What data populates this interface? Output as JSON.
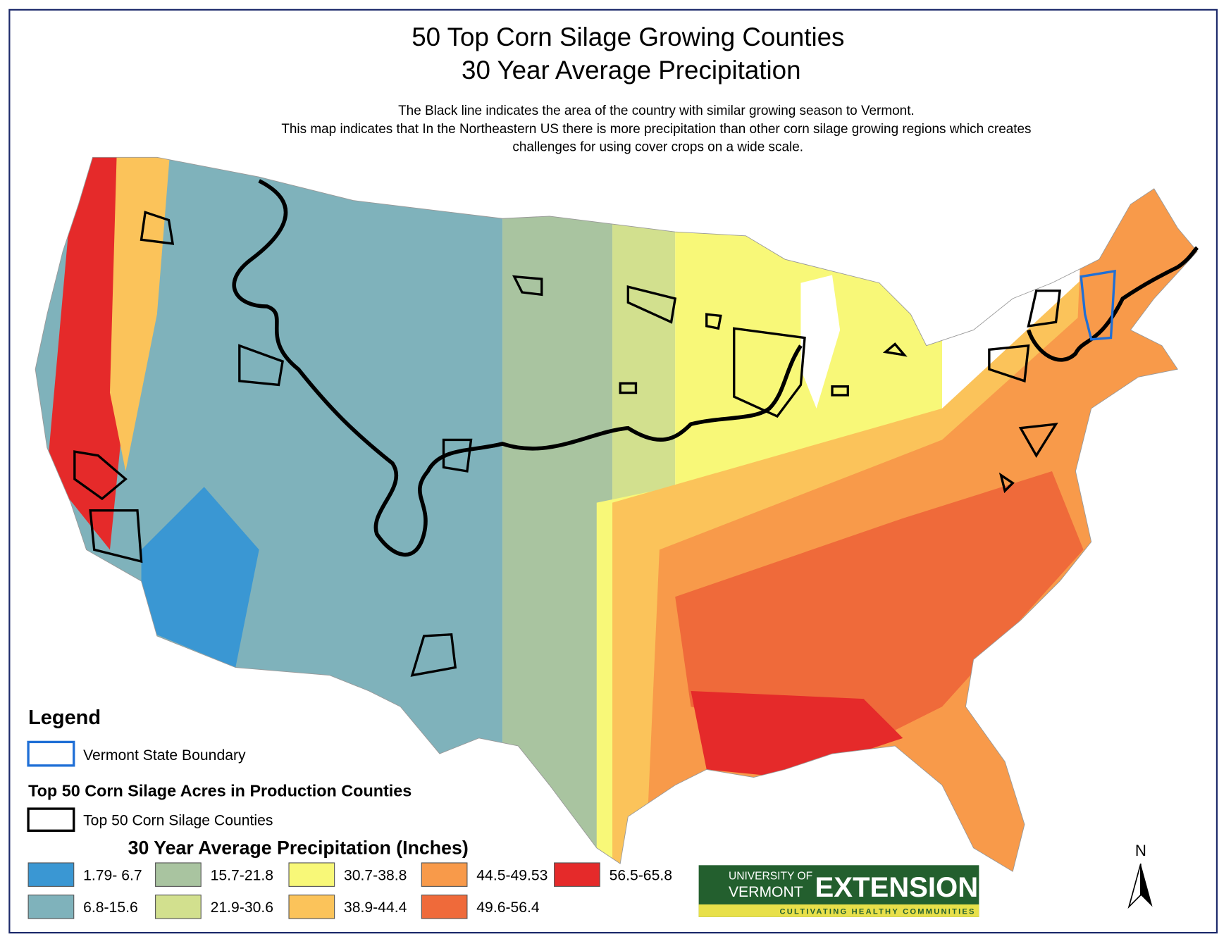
{
  "title": [
    "50 Top Corn Silage Growing Counties",
    "30 Year Average Precipitation"
  ],
  "description": [
    "The Black line indicates the area of the country with similar growing season to Vermont.",
    "This map indicates that In the Northeastern US there is more precipitation than other corn silage growing regions which creates",
    "challenges for using cover crops on a wide scale."
  ],
  "legend": {
    "title": "Legend",
    "vermont": {
      "label": "Vermont State Boundary",
      "color": "#1f6fd6"
    },
    "counties_heading": "Top 50 Corn Silage Acres in Production Counties",
    "counties": {
      "label": "Top 50 Corn Silage Counties",
      "color": "#000000"
    },
    "precip_heading": "30 Year Average Precipitation (Inches)",
    "classes": [
      {
        "label": "1.79- 6.7",
        "color": "#3a97d3"
      },
      {
        "label": "6.8-15.6",
        "color": "#7fb2bb"
      },
      {
        "label": "15.7-21.8",
        "color": "#a9c4a0"
      },
      {
        "label": "21.9-30.6",
        "color": "#d2e08e"
      },
      {
        "label": "30.7-38.8",
        "color": "#f8f878"
      },
      {
        "label": "38.9-44.4",
        "color": "#fbc35a"
      },
      {
        "label": "44.5-49.53",
        "color": "#f89a4a"
      },
      {
        "label": "49.6-56.4",
        "color": "#ef6a3a"
      },
      {
        "label": "56.5-65.8",
        "color": "#e52a2a"
      }
    ]
  },
  "logo": {
    "line1": "UNIVERSITY OF",
    "line2": "VERMONT",
    "brand": "EXTENSION",
    "tagline": "CULTIVATING HEALTHY COMMUNITIES"
  },
  "north": "N"
}
